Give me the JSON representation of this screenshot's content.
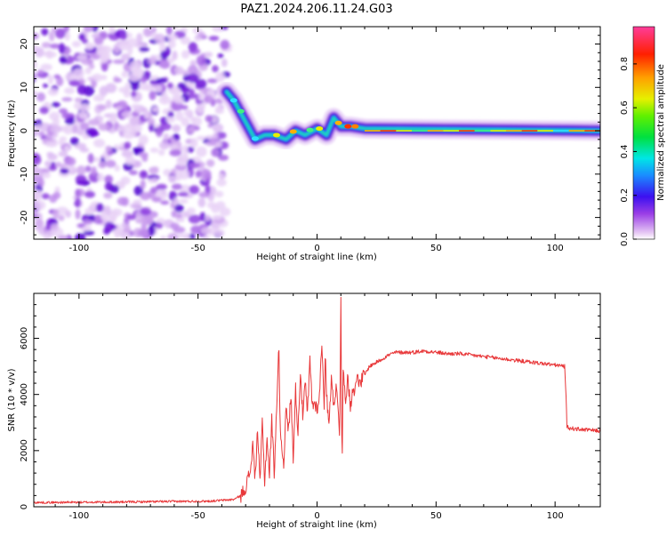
{
  "page": {
    "title": "PAZ1.2024.206.11.24.G03"
  },
  "chart_data": [
    {
      "type": "heatmap",
      "title": "PAZ1.2024.206.11.24.G03",
      "xlabel": "Height of straight line (km)",
      "ylabel": "Frequency (Hz)",
      "xlim": [
        -119,
        119
      ],
      "ylim": [
        -25,
        24
      ],
      "xticks": [
        -100,
        -50,
        0,
        50,
        100
      ],
      "yticks": [
        -20,
        -10,
        0,
        10,
        20
      ],
      "xtick_labels": [
        "-100",
        "-50",
        "0",
        "50",
        "100"
      ],
      "ytick_labels": [
        "-20",
        "-10",
        "0",
        "10",
        "20"
      ],
      "grid": false,
      "noise_region": {
        "x": [
          -119,
          -37
        ],
        "y": [
          -25,
          24
        ]
      },
      "ridge": [
        {
          "x": -38,
          "y": 9
        },
        {
          "x": -35,
          "y": 7
        },
        {
          "x": -32,
          "y": 4
        },
        {
          "x": -29,
          "y": 1
        },
        {
          "x": -26,
          "y": -2
        },
        {
          "x": -22,
          "y": -1
        },
        {
          "x": -18,
          "y": -1
        },
        {
          "x": -13,
          "y": -2
        },
        {
          "x": -9,
          "y": 0
        },
        {
          "x": -5,
          "y": -1
        },
        {
          "x": 0,
          "y": 0.5
        },
        {
          "x": 4,
          "y": -1
        },
        {
          "x": 7,
          "y": 3
        },
        {
          "x": 10,
          "y": 1
        },
        {
          "x": 14,
          "y": 1
        },
        {
          "x": 20,
          "y": 0.5
        },
        {
          "x": 119,
          "y": 0
        }
      ],
      "colorbar": {
        "label": "Normalized spectral amplitude",
        "range": [
          0,
          0.97
        ],
        "ticks": [
          0.0,
          0.2,
          0.4,
          0.6,
          0.8
        ],
        "tick_labels": [
          "0.0",
          "0.2",
          "0.4",
          "0.6",
          "0.8"
        ],
        "colormap": "gist_ncar-like: white, purple, blue, cyan, green, yellow, orange, red, pink"
      }
    },
    {
      "type": "line",
      "xlabel": "Height of straight line (km)",
      "ylabel": "SNR (10 * v/v)",
      "xlim": [
        -119,
        119
      ],
      "ylim": [
        0,
        7600
      ],
      "xticks": [
        -100,
        -50,
        0,
        50,
        100
      ],
      "xtick_labels": [
        "-100",
        "-50",
        "0",
        "50",
        "100"
      ],
      "yticks": [
        0,
        2000,
        4000,
        6000
      ],
      "ytick_labels": [
        "0",
        "2000",
        "4000",
        "6000"
      ],
      "grid": false,
      "color": "#e8383a",
      "series": [
        {
          "x": [
            -119,
            -100,
            -80,
            -60,
            -45,
            -35,
            -32,
            -30,
            -28,
            -27,
            -26,
            -25,
            -24,
            -23,
            -22,
            -21,
            -20,
            -19,
            -18,
            -17,
            -16,
            -15.5,
            -15,
            -14,
            -13,
            -12,
            -11,
            -10,
            -9,
            -8,
            -7,
            -6,
            -5,
            -4,
            -3,
            -2,
            -1,
            0,
            1,
            2,
            3,
            3.5,
            4,
            5,
            6,
            7,
            8,
            9,
            9.5,
            10,
            10.5,
            11,
            12,
            13,
            14,
            15,
            16,
            17,
            18,
            19,
            20,
            22,
            24,
            26,
            28,
            30,
            33,
            36,
            40,
            45,
            50,
            55,
            60,
            65,
            70,
            75,
            80,
            85,
            90,
            95,
            100,
            104,
            104.5,
            105,
            106,
            108,
            110,
            113,
            116,
            119
          ],
          "y": [
            150,
            160,
            170,
            190,
            200,
            260,
            400,
            700,
            1300,
            2200,
            1000,
            2800,
            800,
            3000,
            900,
            2500,
            1100,
            3100,
            1200,
            3500,
            5700,
            2900,
            2200,
            1600,
            3500,
            2700,
            4000,
            1800,
            4200,
            2600,
            4900,
            3200,
            4400,
            3300,
            5200,
            3600,
            3700,
            3500,
            3900,
            5900,
            3700,
            5400,
            3900,
            3100,
            4500,
            3700,
            4200,
            3500,
            2300,
            7600,
            1200,
            4800,
            3900,
            4600,
            3500,
            4300,
            4100,
            4800,
            4300,
            4600,
            4700,
            5000,
            5100,
            5200,
            5300,
            5400,
            5500,
            5500,
            5500,
            5550,
            5500,
            5450,
            5450,
            5400,
            5350,
            5300,
            5250,
            5200,
            5150,
            5100,
            5050,
            5000,
            4200,
            2850,
            2800,
            2780,
            2760,
            2740,
            2720,
            2700
          ]
        }
      ]
    }
  ]
}
